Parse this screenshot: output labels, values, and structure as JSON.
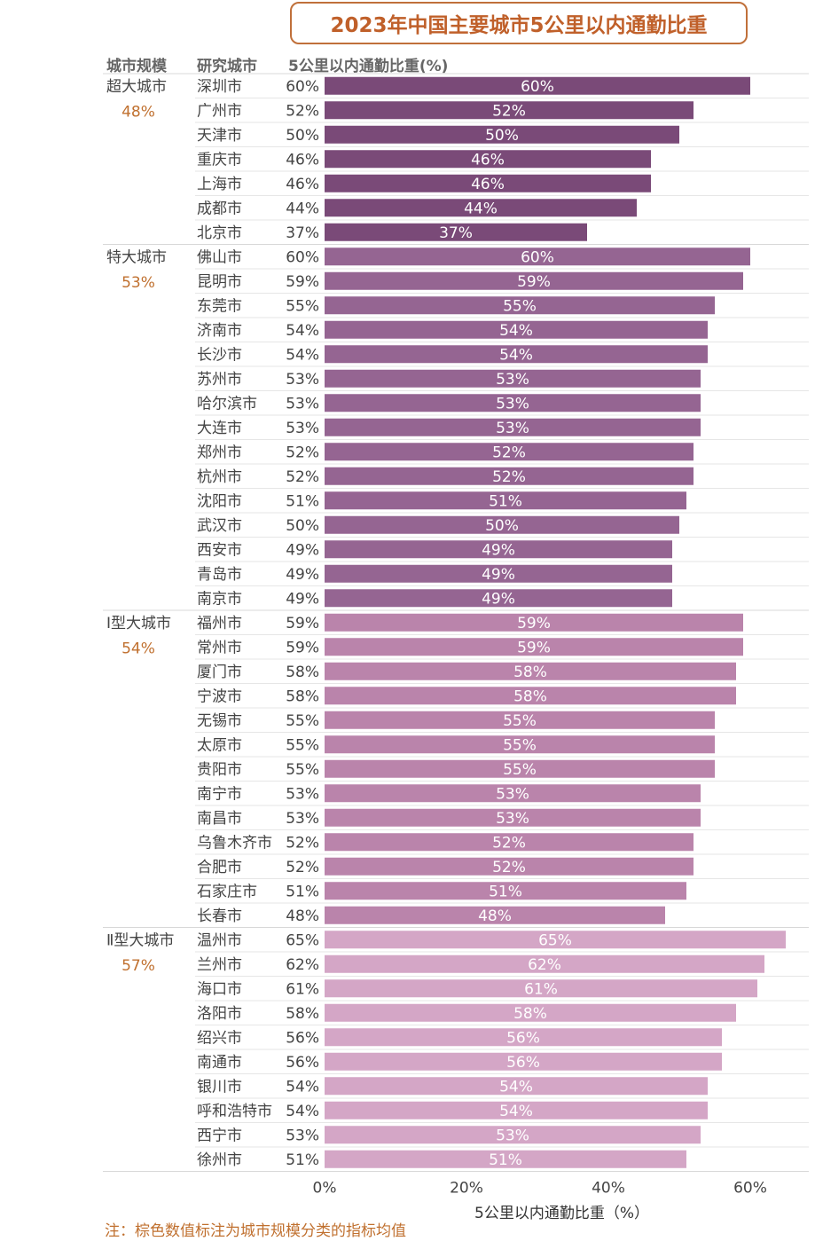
{
  "colors": {
    "title": "#c0602a",
    "mean_label": "#c0702f",
    "group_bars": [
      "#7a4a78",
      "#956592",
      "#ba84ab",
      "#d4a6c6"
    ]
  },
  "chart_data": {
    "type": "bar",
    "orientation": "horizontal",
    "title": "2023年中国主要城市5公里以内通勤比重",
    "column_headers": {
      "scale": "城市规模",
      "city": "研究城市",
      "value": "5公里以内通勤比重(%)"
    },
    "xlabel": "5公里以内通勤比重（%）",
    "xlim": [
      0,
      66
    ],
    "xticks": [
      "0%",
      "20%",
      "40%",
      "60%"
    ],
    "xtick_values": [
      0,
      20,
      40,
      60
    ],
    "grid": false,
    "groups": [
      {
        "name": "超大城市",
        "mean": "48%",
        "cities": [
          {
            "name": "深圳市",
            "value": 60,
            "label": "60%"
          },
          {
            "name": "广州市",
            "value": 52,
            "label": "52%"
          },
          {
            "name": "天津市",
            "value": 50,
            "label": "50%"
          },
          {
            "name": "重庆市",
            "value": 46,
            "label": "46%"
          },
          {
            "name": "上海市",
            "value": 46,
            "label": "46%"
          },
          {
            "name": "成都市",
            "value": 44,
            "label": "44%"
          },
          {
            "name": "北京市",
            "value": 37,
            "label": "37%"
          }
        ]
      },
      {
        "name": "特大城市",
        "mean": "53%",
        "cities": [
          {
            "name": "佛山市",
            "value": 60,
            "label": "60%"
          },
          {
            "name": "昆明市",
            "value": 59,
            "label": "59%"
          },
          {
            "name": "东莞市",
            "value": 55,
            "label": "55%"
          },
          {
            "name": "济南市",
            "value": 54,
            "label": "54%"
          },
          {
            "name": "长沙市",
            "value": 54,
            "label": "54%"
          },
          {
            "name": "苏州市",
            "value": 53,
            "label": "53%"
          },
          {
            "name": "哈尔滨市",
            "value": 53,
            "label": "53%"
          },
          {
            "name": "大连市",
            "value": 53,
            "label": "53%"
          },
          {
            "name": "郑州市",
            "value": 52,
            "label": "52%"
          },
          {
            "name": "杭州市",
            "value": 52,
            "label": "52%"
          },
          {
            "name": "沈阳市",
            "value": 51,
            "label": "51%"
          },
          {
            "name": "武汉市",
            "value": 50,
            "label": "50%"
          },
          {
            "name": "西安市",
            "value": 49,
            "label": "49%"
          },
          {
            "name": "青岛市",
            "value": 49,
            "label": "49%"
          },
          {
            "name": "南京市",
            "value": 49,
            "label": "49%"
          }
        ]
      },
      {
        "name": "Ⅰ型大城市",
        "mean": "54%",
        "cities": [
          {
            "name": "福州市",
            "value": 59,
            "label": "59%"
          },
          {
            "name": "常州市",
            "value": 59,
            "label": "59%"
          },
          {
            "name": "厦门市",
            "value": 58,
            "label": "58%"
          },
          {
            "name": "宁波市",
            "value": 58,
            "label": "58%"
          },
          {
            "name": "无锡市",
            "value": 55,
            "label": "55%"
          },
          {
            "name": "太原市",
            "value": 55,
            "label": "55%"
          },
          {
            "name": "贵阳市",
            "value": 55,
            "label": "55%"
          },
          {
            "name": "南宁市",
            "value": 53,
            "label": "53%"
          },
          {
            "name": "南昌市",
            "value": 53,
            "label": "53%"
          },
          {
            "name": "乌鲁木齐市",
            "value": 52,
            "label": "52%"
          },
          {
            "name": "合肥市",
            "value": 52,
            "label": "52%"
          },
          {
            "name": "石家庄市",
            "value": 51,
            "label": "51%"
          },
          {
            "name": "长春市",
            "value": 48,
            "label": "48%"
          }
        ]
      },
      {
        "name": "Ⅱ型大城市",
        "mean": "57%",
        "cities": [
          {
            "name": "温州市",
            "value": 65,
            "label": "65%"
          },
          {
            "name": "兰州市",
            "value": 62,
            "label": "62%"
          },
          {
            "name": "海口市",
            "value": 61,
            "label": "61%"
          },
          {
            "name": "洛阳市",
            "value": 58,
            "label": "58%"
          },
          {
            "name": "绍兴市",
            "value": 56,
            "label": "56%"
          },
          {
            "name": "南通市",
            "value": 56,
            "label": "56%"
          },
          {
            "name": "银川市",
            "value": 54,
            "label": "54%"
          },
          {
            "name": "呼和浩特市",
            "value": 54,
            "label": "54%"
          },
          {
            "name": "西宁市",
            "value": 53,
            "label": "53%"
          },
          {
            "name": "徐州市",
            "value": 51,
            "label": "51%"
          }
        ]
      }
    ]
  },
  "footnote": "注：棕色数值标注为城市规模分类的指标均值"
}
